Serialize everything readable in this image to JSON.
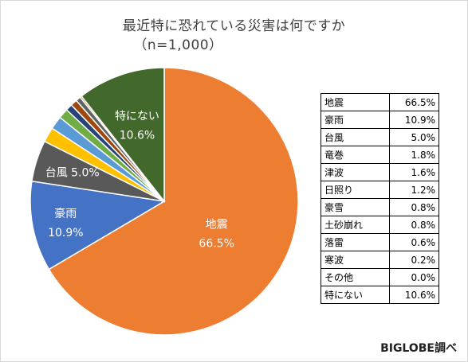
{
  "chart_data": {
    "type": "pie",
    "title": "最近特に恐れている災害は何ですか",
    "subtitle": "（n=1,000）",
    "categories": [
      "地震",
      "豪雨",
      "台風",
      "竜巻",
      "津波",
      "日照り",
      "豪雪",
      "土砂崩れ",
      "落雷",
      "寒波",
      "その他",
      "特にない"
    ],
    "values": [
      66.5,
      10.9,
      5.0,
      1.8,
      1.6,
      1.2,
      0.8,
      0.8,
      0.6,
      0.2,
      0.0,
      10.6
    ],
    "value_labels": [
      "66.5%",
      "10.9%",
      "5.0%",
      "1.8%",
      "1.6%",
      "1.2%",
      "0.8%",
      "0.8%",
      "0.6%",
      "0.2%",
      "0.0%",
      "10.6%"
    ],
    "colors": [
      "#ED7D31",
      "#4472C4",
      "#595959",
      "#FFC000",
      "#5B9BD5",
      "#70AD47",
      "#264478",
      "#9E480E",
      "#636363",
      "#997300",
      "#255E91",
      "#43682B"
    ],
    "slice_labels": [
      {
        "index": 0,
        "name": "地震",
        "value": "66.5%"
      },
      {
        "index": 1,
        "name": "豪雨",
        "value": "10.9%"
      },
      {
        "index": 2,
        "name": "台風",
        "value": "5.0%"
      },
      {
        "index": 11,
        "name": "特にない",
        "value": "10.6%"
      }
    ],
    "table": true,
    "legend_placement": "right"
  },
  "source": "BIGLOBE調べ"
}
